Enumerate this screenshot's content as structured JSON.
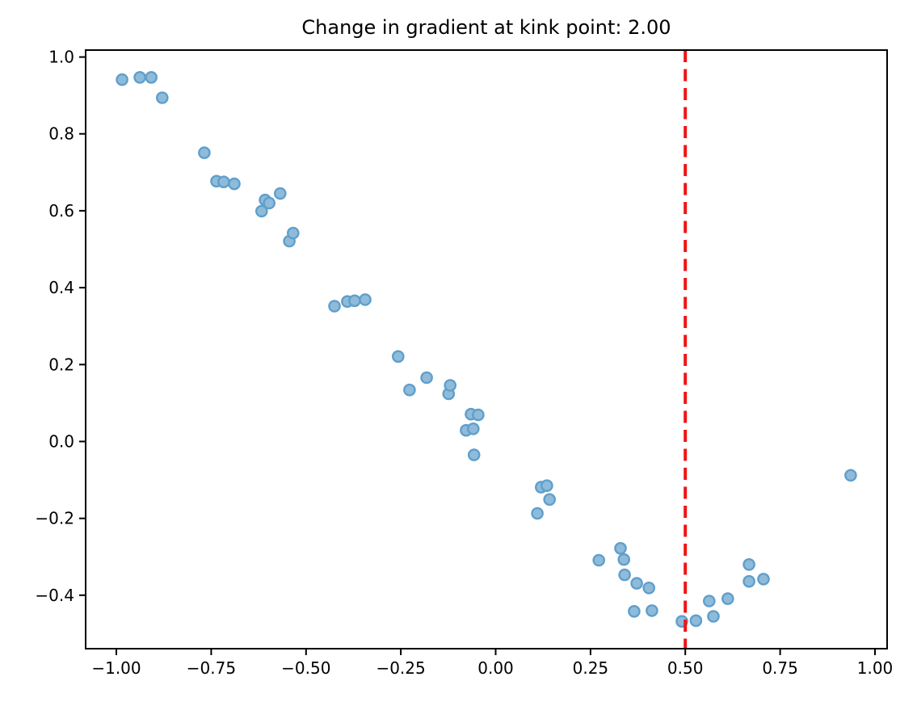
{
  "title": "Change in gradient at kink point: 2.00",
  "chart_data": {
    "type": "scatter",
    "title": "Change in gradient at kink point: 2.00",
    "xlabel": "",
    "ylabel": "",
    "xlim": [
      -1.081,
      1.032
    ],
    "ylim": [
      -0.539,
      1.018
    ],
    "grid": false,
    "legend": null,
    "xticks": {
      "values": [
        -1.0,
        -0.75,
        -0.5,
        -0.25,
        0.0,
        0.25,
        0.5,
        0.75,
        1.0
      ],
      "labels": [
        "−1.00",
        "−0.75",
        "−0.50",
        "−0.25",
        "0.00",
        "0.25",
        "0.50",
        "0.75",
        "1.00"
      ]
    },
    "yticks": {
      "values": [
        1.0,
        0.8,
        0.6,
        0.4,
        0.2,
        0.0,
        -0.2,
        -0.4
      ],
      "labels": [
        "1.0",
        "0.8",
        "0.6",
        "0.4",
        "0.2",
        "0.0",
        "−0.2",
        "−0.4"
      ]
    },
    "series": [
      {
        "name": "scatter-points",
        "marker": "circle",
        "fill_color": "#8fbbda",
        "edge_color": "#5f9fcb",
        "points": [
          [
            -0.985,
            0.941
          ],
          [
            -0.938,
            0.947
          ],
          [
            -0.908,
            0.947
          ],
          [
            -0.879,
            0.894
          ],
          [
            -0.768,
            0.751
          ],
          [
            -0.736,
            0.677
          ],
          [
            -0.717,
            0.675
          ],
          [
            -0.689,
            0.67
          ],
          [
            -0.617,
            0.599
          ],
          [
            -0.608,
            0.628
          ],
          [
            -0.597,
            0.62
          ],
          [
            -0.568,
            0.645
          ],
          [
            -0.544,
            0.521
          ],
          [
            -0.534,
            0.542
          ],
          [
            -0.425,
            0.352
          ],
          [
            -0.391,
            0.364
          ],
          [
            -0.372,
            0.366
          ],
          [
            -0.344,
            0.369
          ],
          [
            -0.257,
            0.221
          ],
          [
            -0.227,
            0.134
          ],
          [
            -0.182,
            0.166
          ],
          [
            -0.124,
            0.124
          ],
          [
            -0.12,
            0.146
          ],
          [
            -0.078,
            0.029
          ],
          [
            -0.065,
            0.071
          ],
          [
            -0.059,
            0.033
          ],
          [
            -0.046,
            0.069
          ],
          [
            -0.057,
            -0.035
          ],
          [
            0.11,
            -0.187
          ],
          [
            0.12,
            -0.119
          ],
          [
            0.135,
            -0.115
          ],
          [
            0.142,
            -0.151
          ],
          [
            0.272,
            -0.309
          ],
          [
            0.329,
            -0.278
          ],
          [
            0.338,
            -0.307
          ],
          [
            0.34,
            -0.347
          ],
          [
            0.372,
            -0.369
          ],
          [
            0.404,
            -0.381
          ],
          [
            0.365,
            -0.442
          ],
          [
            0.412,
            -0.44
          ],
          [
            0.491,
            -0.468
          ],
          [
            0.528,
            -0.466
          ],
          [
            0.574,
            -0.455
          ],
          [
            0.563,
            -0.415
          ],
          [
            0.612,
            -0.409
          ],
          [
            0.668,
            -0.32
          ],
          [
            0.668,
            -0.364
          ],
          [
            0.706,
            -0.358
          ],
          [
            0.936,
            -0.088
          ]
        ]
      }
    ],
    "vline": {
      "x": 0.5,
      "color": "#f01414",
      "style": "dashed"
    },
    "axis_color": "#000000",
    "tick_label_color": "#000000",
    "title_color": "#000000"
  }
}
